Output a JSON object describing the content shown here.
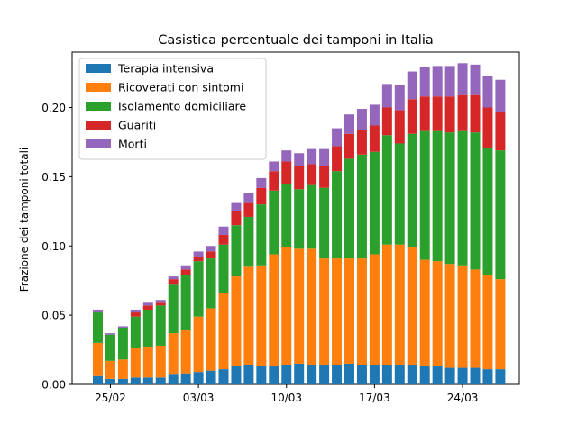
{
  "chart_data": {
    "type": "bar",
    "stacked": true,
    "title": "Casistica percentuale dei tamponi in Italia",
    "xlabel": "",
    "ylabel": "Frazione dei tamponi totali",
    "ylim": [
      0,
      0.24
    ],
    "y_ticks": [
      0.0,
      0.05,
      0.1,
      0.15,
      0.2
    ],
    "y_tick_labels": [
      "0.00",
      "0.05",
      "0.10",
      "0.15",
      "0.20"
    ],
    "categories": [
      "24/02",
      "25/02",
      "26/02",
      "27/02",
      "28/02",
      "29/02",
      "01/03",
      "02/03",
      "03/03",
      "04/03",
      "05/03",
      "06/03",
      "07/03",
      "08/03",
      "09/03",
      "10/03",
      "11/03",
      "12/03",
      "13/03",
      "14/03",
      "15/03",
      "16/03",
      "17/03",
      "18/03",
      "19/03",
      "20/03",
      "21/03",
      "22/03",
      "23/03",
      "24/03",
      "25/03",
      "26/03",
      "27/03"
    ],
    "x_tick_labels": [
      {
        "category": "25/02",
        "label": "25/02"
      },
      {
        "category": "03/03",
        "label": "03/03"
      },
      {
        "category": "10/03",
        "label": "10/03"
      },
      {
        "category": "17/03",
        "label": "17/03"
      },
      {
        "category": "24/03",
        "label": "24/03"
      }
    ],
    "legend_position": "upper-left",
    "series": [
      {
        "name": "Terapia intensiva",
        "color": "#1f77b4",
        "values": [
          0.006,
          0.004,
          0.004,
          0.005,
          0.005,
          0.005,
          0.007,
          0.008,
          0.009,
          0.01,
          0.011,
          0.013,
          0.014,
          0.013,
          0.013,
          0.014,
          0.015,
          0.014,
          0.014,
          0.014,
          0.015,
          0.014,
          0.014,
          0.014,
          0.014,
          0.014,
          0.013,
          0.013,
          0.012,
          0.012,
          0.012,
          0.011,
          0.011
        ]
      },
      {
        "name": "Ricoverati con sintomi",
        "color": "#ff7f0e",
        "values": [
          0.024,
          0.013,
          0.014,
          0.021,
          0.022,
          0.023,
          0.03,
          0.031,
          0.04,
          0.045,
          0.055,
          0.065,
          0.071,
          0.073,
          0.081,
          0.085,
          0.083,
          0.084,
          0.077,
          0.077,
          0.076,
          0.077,
          0.08,
          0.087,
          0.087,
          0.085,
          0.077,
          0.076,
          0.075,
          0.074,
          0.071,
          0.068,
          0.065
        ]
      },
      {
        "name": "Isolamento domiciliare",
        "color": "#2ca02c",
        "values": [
          0.022,
          0.019,
          0.023,
          0.023,
          0.027,
          0.029,
          0.035,
          0.04,
          0.04,
          0.036,
          0.035,
          0.037,
          0.036,
          0.044,
          0.046,
          0.046,
          0.043,
          0.046,
          0.051,
          0.063,
          0.072,
          0.075,
          0.074,
          0.079,
          0.073,
          0.082,
          0.093,
          0.094,
          0.095,
          0.097,
          0.099,
          0.092,
          0.093
        ]
      },
      {
        "name": "Guariti",
        "color": "#d62728",
        "values": [
          0.0,
          0.0,
          0.0,
          0.003,
          0.003,
          0.002,
          0.004,
          0.004,
          0.003,
          0.005,
          0.007,
          0.01,
          0.01,
          0.012,
          0.014,
          0.016,
          0.017,
          0.015,
          0.016,
          0.018,
          0.018,
          0.018,
          0.019,
          0.02,
          0.024,
          0.025,
          0.025,
          0.025,
          0.026,
          0.026,
          0.027,
          0.029,
          0.028
        ]
      },
      {
        "name": "Morti",
        "color": "#9467bd",
        "values": [
          0.002,
          0.001,
          0.001,
          0.002,
          0.002,
          0.002,
          0.002,
          0.003,
          0.004,
          0.004,
          0.006,
          0.006,
          0.007,
          0.007,
          0.007,
          0.008,
          0.009,
          0.011,
          0.012,
          0.013,
          0.014,
          0.015,
          0.015,
          0.017,
          0.018,
          0.02,
          0.021,
          0.022,
          0.022,
          0.023,
          0.022,
          0.023,
          0.023
        ]
      }
    ]
  }
}
